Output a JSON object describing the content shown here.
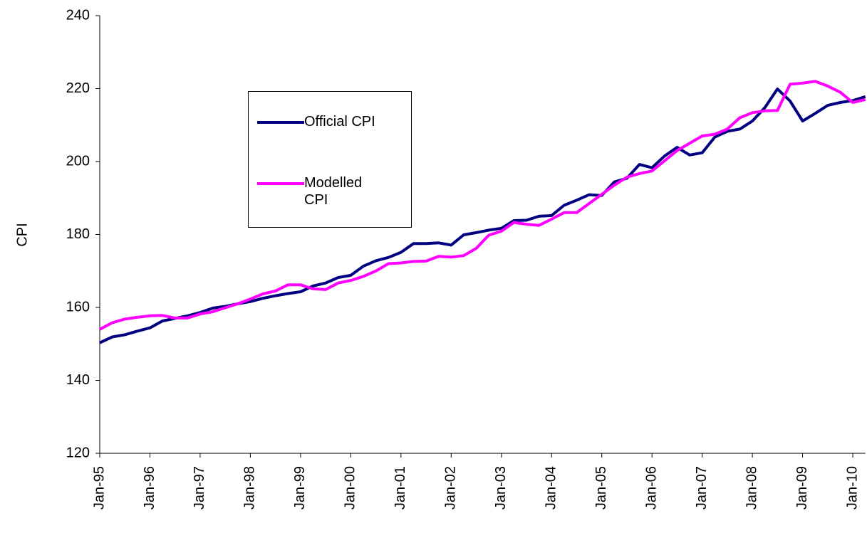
{
  "chart_data": {
    "type": "line",
    "ylabel": "CPI",
    "categories": [
      "Jan-95",
      null,
      null,
      null,
      "Jan-96",
      null,
      null,
      null,
      "Jan-97",
      null,
      null,
      null,
      "Jan-98",
      null,
      null,
      null,
      "Jan-99",
      null,
      null,
      null,
      "Jan-00",
      null,
      null,
      null,
      "Jan-01",
      null,
      null,
      null,
      "Jan-02",
      null,
      null,
      null,
      "Jan-03",
      null,
      null,
      null,
      "Jan-04",
      null,
      null,
      null,
      "Jan-05",
      null,
      null,
      null,
      "Jan-06",
      null,
      null,
      null,
      "Jan-07",
      null,
      null,
      null,
      "Jan-08",
      null,
      null,
      null,
      "Jan-09",
      null,
      null,
      null,
      "Jan-10",
      null
    ],
    "series": [
      {
        "name": "Official CPI",
        "color": "#000080",
        "values": [
          150.3,
          151.9,
          152.5,
          153.5,
          154.4,
          156.3,
          157.0,
          157.7,
          158.6,
          159.8,
          160.3,
          161.0,
          161.6,
          162.5,
          163.2,
          163.8,
          164.3,
          165.9,
          166.7,
          168.2,
          168.8,
          171.3,
          172.8,
          173.7,
          175.1,
          177.5,
          177.5,
          177.7,
          177.1,
          179.9,
          180.5,
          181.2,
          181.7,
          183.8,
          183.9,
          185.0,
          185.2,
          188.0,
          189.4,
          190.9,
          190.7,
          194.4,
          195.4,
          199.2,
          198.3,
          201.5,
          203.9,
          201.8,
          202.4,
          206.7,
          208.3,
          208.9,
          211.1,
          214.8,
          219.9,
          216.6,
          211.1,
          213.2,
          215.4,
          216.2,
          216.7,
          217.8
        ]
      },
      {
        "name": "Modelled CPI",
        "color": "#ff00ff",
        "values": [
          154.0,
          155.8,
          156.8,
          157.3,
          157.7,
          157.8,
          157.1,
          157.1,
          158.2,
          158.8,
          159.9,
          161.0,
          162.3,
          163.7,
          164.5,
          166.2,
          166.2,
          165.1,
          164.9,
          166.7,
          167.4,
          168.5,
          170.0,
          172.0,
          172.2,
          172.6,
          172.7,
          174.0,
          173.8,
          174.2,
          176.2,
          179.8,
          180.9,
          183.3,
          182.8,
          182.5,
          184.2,
          186.0,
          186.0,
          188.5,
          191.0,
          193.5,
          195.7,
          196.7,
          197.4,
          200.2,
          203.0,
          205.0,
          207.0,
          207.5,
          208.9,
          212.0,
          213.4,
          213.9,
          214.0,
          221.2,
          221.5,
          222.0,
          220.7,
          219.0,
          216.2,
          217.0
        ]
      }
    ],
    "ylim": [
      120,
      240
    ],
    "yticks": [
      120,
      140,
      160,
      180,
      200,
      220,
      240
    ],
    "grid": false
  }
}
